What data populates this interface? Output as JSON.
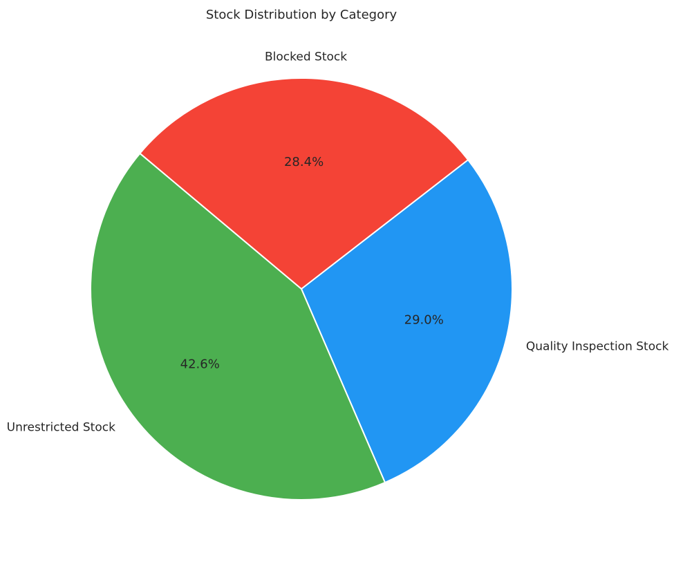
{
  "chart_data": {
    "type": "pie",
    "title": "Stock Distribution by Category",
    "slices": [
      {
        "label": "Blocked Stock",
        "value": 28.4,
        "display": "28.4%",
        "color": "#f44336"
      },
      {
        "label": "Quality Inspection Stock",
        "value": 29.0,
        "display": "29.0%",
        "color": "#2196f3"
      },
      {
        "label": "Unrestricted Stock",
        "value": 42.6,
        "display": "42.6%",
        "color": "#4caf50"
      }
    ],
    "start_angle_deg": 140,
    "direction": "clockwise",
    "legend": "none",
    "slice_edge_color": "#ffffff"
  }
}
